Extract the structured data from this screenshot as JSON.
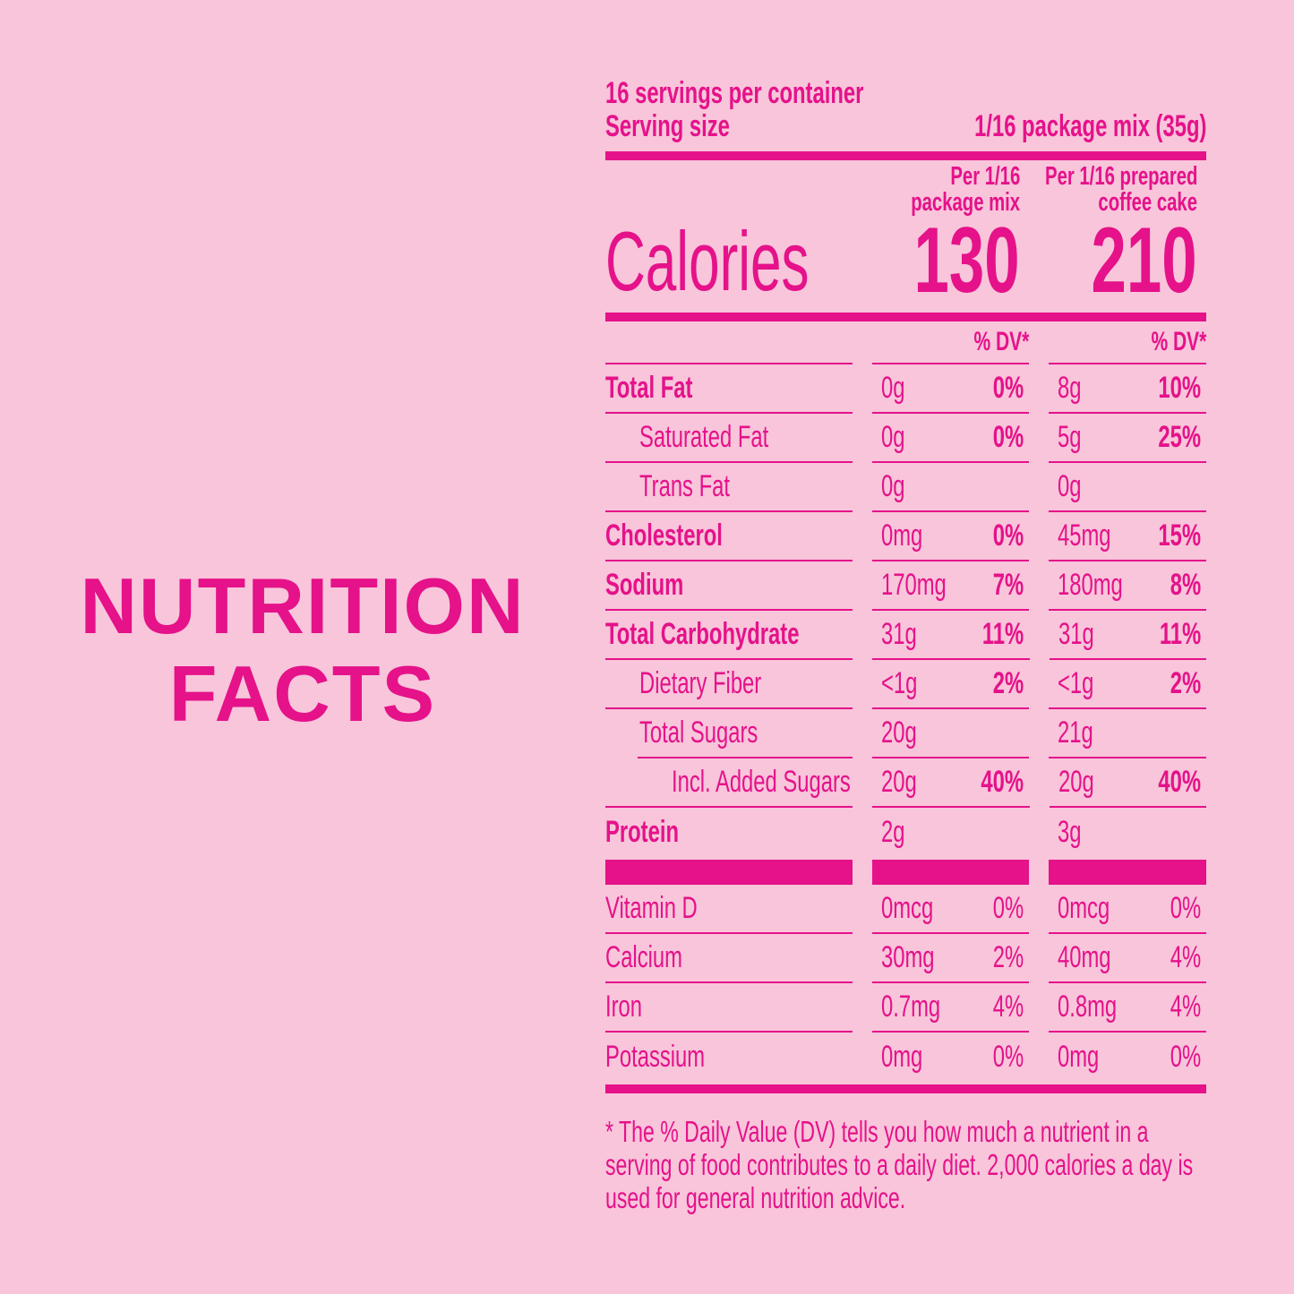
{
  "heading": {
    "line1": "NUTRITION",
    "line2": "FACTS"
  },
  "servings": "16 servings per container",
  "serving_size_label": "Serving size",
  "serving_size_value": "1/16 package mix (35g)",
  "columns": [
    {
      "line1": "Per 1/16",
      "line2": "package mix"
    },
    {
      "line1": "Per 1/16 prepared",
      "line2": "coffee cake"
    }
  ],
  "calories_label": "Calories",
  "calories": [
    "130",
    "210"
  ],
  "dv_header": "% DV*",
  "rows": [
    {
      "label": "Total  Fat",
      "bold": true,
      "indent": 0,
      "c1": [
        "0g",
        "0%"
      ],
      "c2": [
        "8g",
        "10%"
      ]
    },
    {
      "label": "Saturated Fat",
      "bold": false,
      "indent": 1,
      "c1": [
        "0g",
        "0%"
      ],
      "c2": [
        "5g",
        "25%"
      ]
    },
    {
      "label": "Trans Fat",
      "bold": false,
      "indent": 1,
      "c1": [
        "0g",
        ""
      ],
      "c2": [
        "0g",
        ""
      ]
    },
    {
      "label": "Cholesterol",
      "bold": true,
      "indent": 0,
      "c1": [
        "0mg",
        "0%"
      ],
      "c2": [
        "45mg",
        "15%"
      ]
    },
    {
      "label": "Sodium",
      "bold": true,
      "indent": 0,
      "c1": [
        "170mg",
        "7%"
      ],
      "c2": [
        "180mg",
        "8%"
      ]
    },
    {
      "label": "Total  Carbohydrate",
      "bold": true,
      "indent": 0,
      "c1": [
        "31g",
        "11%"
      ],
      "c2": [
        "31g",
        "11%"
      ]
    },
    {
      "label": "Dietary Fiber",
      "bold": false,
      "indent": 1,
      "c1": [
        "<1g",
        "2%"
      ],
      "c2": [
        "<1g",
        "2%"
      ]
    },
    {
      "label": "Total Sugars",
      "bold": false,
      "indent": 1,
      "c1": [
        "20g",
        ""
      ],
      "c2": [
        "21g",
        ""
      ]
    },
    {
      "label": "Incl. Added Sugars",
      "bold": false,
      "indent": 2,
      "c1": [
        "20g",
        "40%"
      ],
      "c2": [
        "20g",
        "40%"
      ]
    },
    {
      "label": "Protein",
      "bold": true,
      "indent": 0,
      "c1": [
        "2g",
        ""
      ],
      "c2": [
        "3g",
        ""
      ]
    }
  ],
  "vitamins": [
    {
      "label": "Vitamin D",
      "c1": [
        "0mcg",
        "0%"
      ],
      "c2": [
        "0mcg",
        "0%"
      ]
    },
    {
      "label": "Calcium",
      "c1": [
        "30mg",
        "2%"
      ],
      "c2": [
        "40mg",
        "4%"
      ]
    },
    {
      "label": "Iron",
      "c1": [
        "0.7mg",
        "4%"
      ],
      "c2": [
        "0.8mg",
        "4%"
      ]
    },
    {
      "label": "Potassium",
      "c1": [
        "0mg",
        "0%"
      ],
      "c2": [
        "0mg",
        "0%"
      ]
    }
  ],
  "footnote": "* The % Daily Value (DV) tells you how much a nutrient in a serving of food contributes to a daily diet. 2,000 calories a day is used for general nutrition advice.",
  "colors": {
    "background": "#f8c5da",
    "accent": "#e5128a"
  }
}
